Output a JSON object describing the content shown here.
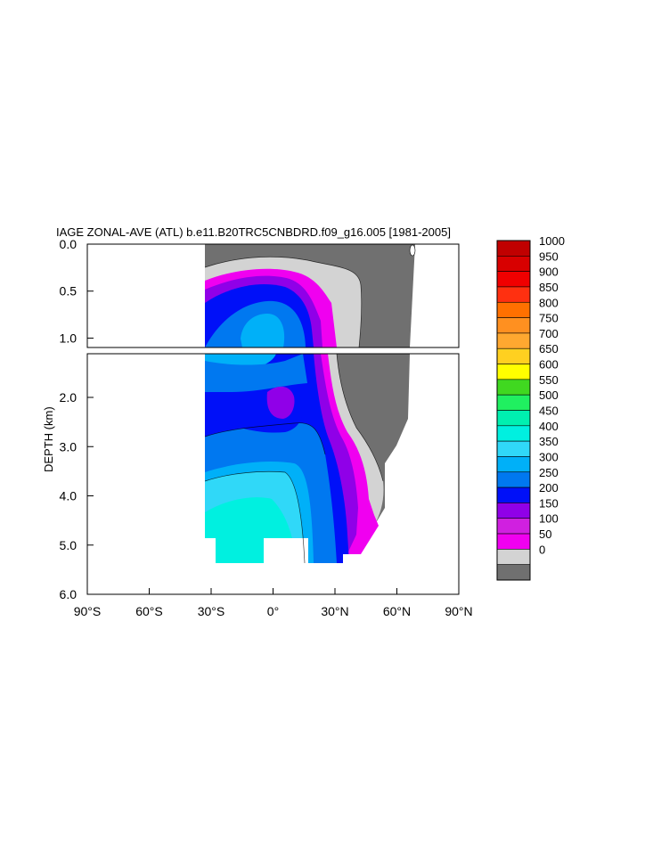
{
  "chart_data": {
    "type": "heatmap",
    "title": "IAGE ZONAL-AVE (ATL) b.e11.B20TRC5CNBDRD.f09_g16.005 [1981-2005]",
    "ylabel": "DEPTH (km)",
    "xlabel": "",
    "x_ticks": [
      "90°S",
      "60°S",
      "30°S",
      "0°",
      "30°N",
      "60°N",
      "90°N"
    ],
    "y_ticks_upper": [
      "0.0",
      "0.5",
      "1.0"
    ],
    "y_ticks_lower": [
      "2.0",
      "3.0",
      "4.0",
      "5.0",
      "6.0"
    ],
    "xlim": [
      -90,
      90
    ],
    "ylim": [
      0,
      6
    ],
    "y_break_km": 1.1,
    "colorbar": {
      "levels": [
        "1000",
        "950",
        "900",
        "850",
        "800",
        "750",
        "700",
        "650",
        "600",
        "550",
        "500",
        "450",
        "400",
        "350",
        "300",
        "250",
        "200",
        "150",
        "100",
        "50",
        "0"
      ],
      "colors": [
        "#c00000",
        "#d80000",
        "#f00000",
        "#ff3010",
        "#ff7000",
        "#ff9020",
        "#ffa830",
        "#ffd020",
        "#ffff00",
        "#40d820",
        "#20f060",
        "#00f0b0",
        "#00f0e0",
        "#30d8f8",
        "#00b0f8",
        "#0078f0",
        "#0010f8",
        "#9000e8",
        "#d020e0",
        "#f000f0",
        "#d3d3d3",
        "#707070"
      ]
    }
  }
}
